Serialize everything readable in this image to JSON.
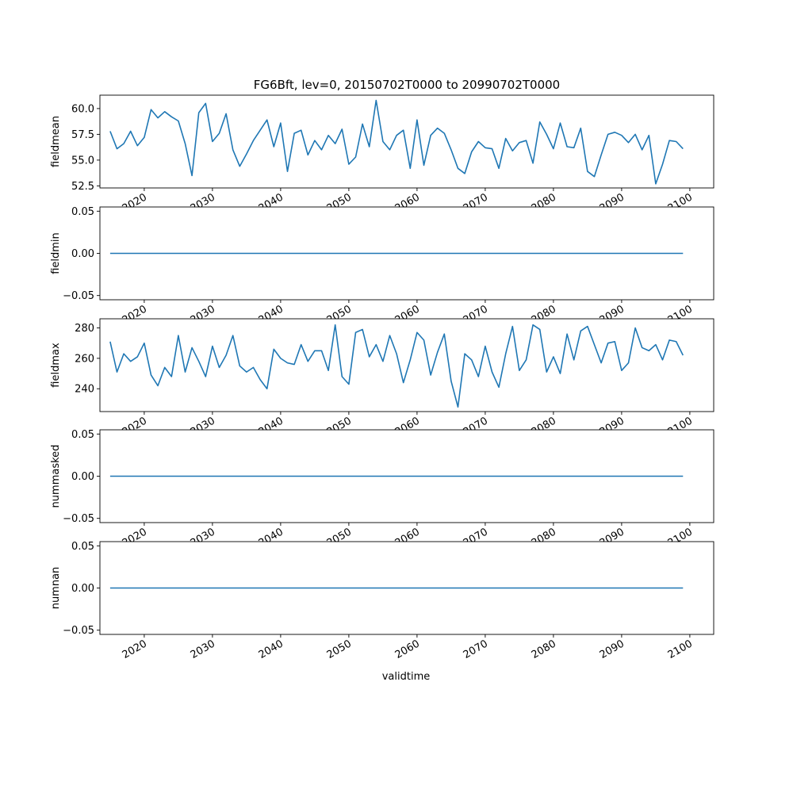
{
  "title": "FG6Bft, lev=0, 20150702T0000 to 20990702T0000",
  "xlabel": "validtime",
  "x_tick_labels": [
    "2020",
    "2030",
    "2040",
    "2050",
    "2060",
    "2070",
    "2080",
    "2090",
    "2100"
  ],
  "colors": {
    "line": "#1f77b4"
  },
  "chart_data": [
    {
      "type": "line",
      "ylabel": "fieldmean",
      "xlim": [
        2013.5,
        2103.5
      ],
      "ylim": [
        52.3,
        61.3
      ],
      "y_ticks": [
        52.5,
        55.0,
        57.5,
        60.0
      ],
      "y_tick_labels": [
        "52.5",
        "55.0",
        "57.5",
        "60.0"
      ],
      "x": [
        2015,
        2016,
        2017,
        2018,
        2019,
        2020,
        2021,
        2022,
        2023,
        2024,
        2025,
        2026,
        2027,
        2028,
        2029,
        2030,
        2031,
        2032,
        2033,
        2034,
        2035,
        2036,
        2037,
        2038,
        2039,
        2040,
        2041,
        2042,
        2043,
        2044,
        2045,
        2046,
        2047,
        2048,
        2049,
        2050,
        2051,
        2052,
        2053,
        2054,
        2055,
        2056,
        2057,
        2058,
        2059,
        2060,
        2061,
        2062,
        2063,
        2064,
        2065,
        2066,
        2067,
        2068,
        2069,
        2070,
        2071,
        2072,
        2073,
        2074,
        2075,
        2076,
        2077,
        2078,
        2079,
        2080,
        2081,
        2082,
        2083,
        2084,
        2085,
        2086,
        2087,
        2088,
        2089,
        2090,
        2091,
        2092,
        2093,
        2094,
        2095,
        2096,
        2097,
        2098,
        2099
      ],
      "values": [
        57.8,
        56.1,
        56.6,
        57.8,
        56.4,
        57.2,
        59.9,
        59.1,
        59.7,
        59.2,
        58.8,
        56.6,
        53.5,
        59.6,
        60.5,
        56.8,
        57.6,
        59.5,
        56.0,
        54.4,
        55.6,
        56.9,
        57.9,
        58.9,
        56.3,
        58.6,
        53.9,
        57.6,
        57.9,
        55.5,
        56.9,
        56.0,
        57.4,
        56.6,
        58.0,
        54.6,
        55.3,
        58.5,
        56.3,
        60.8,
        56.8,
        56.0,
        57.4,
        57.9,
        54.2,
        58.9,
        54.5,
        57.4,
        58.1,
        57.6,
        56.0,
        54.2,
        53.7,
        55.8,
        56.8,
        56.2,
        56.1,
        54.2,
        57.1,
        55.9,
        56.7,
        56.9,
        54.7,
        58.7,
        57.5,
        56.1,
        58.6,
        56.3,
        56.2,
        58.1,
        53.9,
        53.4,
        55.5,
        57.5,
        57.7,
        57.4,
        56.7,
        57.5,
        56.0,
        57.4,
        52.7,
        54.6,
        56.9,
        56.8,
        56.1
      ]
    },
    {
      "type": "line",
      "ylabel": "fieldmin",
      "xlim": [
        2013.5,
        2103.5
      ],
      "ylim": [
        -0.055,
        0.055
      ],
      "y_ticks": [
        -0.05,
        0.0,
        0.05
      ],
      "y_tick_labels": [
        "−0.05",
        "0.00",
        "0.05"
      ],
      "x": [
        2015,
        2099
      ],
      "values": [
        0,
        0
      ]
    },
    {
      "type": "line",
      "ylabel": "fieldmax",
      "xlim": [
        2013.5,
        2103.5
      ],
      "ylim": [
        225,
        286
      ],
      "y_ticks": [
        240,
        260,
        280
      ],
      "y_tick_labels": [
        "240",
        "260",
        "280"
      ],
      "x": [
        2015,
        2016,
        2017,
        2018,
        2019,
        2020,
        2021,
        2022,
        2023,
        2024,
        2025,
        2026,
        2027,
        2028,
        2029,
        2030,
        2031,
        2032,
        2033,
        2034,
        2035,
        2036,
        2037,
        2038,
        2039,
        2040,
        2041,
        2042,
        2043,
        2044,
        2045,
        2046,
        2047,
        2048,
        2049,
        2050,
        2051,
        2052,
        2053,
        2054,
        2055,
        2056,
        2057,
        2058,
        2059,
        2060,
        2061,
        2062,
        2063,
        2064,
        2065,
        2066,
        2067,
        2068,
        2069,
        2070,
        2071,
        2072,
        2073,
        2074,
        2075,
        2076,
        2077,
        2078,
        2079,
        2080,
        2081,
        2082,
        2083,
        2084,
        2085,
        2086,
        2087,
        2088,
        2089,
        2090,
        2091,
        2092,
        2093,
        2094,
        2095,
        2096,
        2097,
        2098,
        2099
      ],
      "values": [
        271,
        251,
        263,
        258,
        261,
        270,
        249,
        242,
        254,
        248,
        275,
        251,
        267,
        258,
        248,
        268,
        254,
        262,
        275,
        255,
        251,
        254,
        246,
        240,
        266,
        260,
        257,
        256,
        269,
        258,
        265,
        265,
        252,
        282,
        248,
        243,
        277,
        279,
        261,
        269,
        258,
        275,
        263,
        244,
        259,
        277,
        272,
        249,
        264,
        276,
        245,
        228,
        263,
        259,
        248,
        268,
        251,
        241,
        263,
        281,
        252,
        259,
        282,
        279,
        251,
        261,
        250,
        276,
        259,
        278,
        281,
        269,
        257,
        270,
        271,
        252,
        257,
        280,
        267,
        265,
        269,
        259,
        272,
        271,
        262
      ]
    },
    {
      "type": "line",
      "ylabel": "nummasked",
      "xlim": [
        2013.5,
        2103.5
      ],
      "ylim": [
        -0.055,
        0.055
      ],
      "y_ticks": [
        -0.05,
        0.0,
        0.05
      ],
      "y_tick_labels": [
        "−0.05",
        "0.00",
        "0.05"
      ],
      "x": [
        2015,
        2099
      ],
      "values": [
        0,
        0
      ]
    },
    {
      "type": "line",
      "ylabel": "numnan",
      "xlim": [
        2013.5,
        2103.5
      ],
      "ylim": [
        -0.055,
        0.055
      ],
      "y_ticks": [
        -0.05,
        0.0,
        0.05
      ],
      "y_tick_labels": [
        "−0.05",
        "0.00",
        "0.05"
      ],
      "x": [
        2015,
        2099
      ],
      "values": [
        0,
        0
      ]
    }
  ]
}
